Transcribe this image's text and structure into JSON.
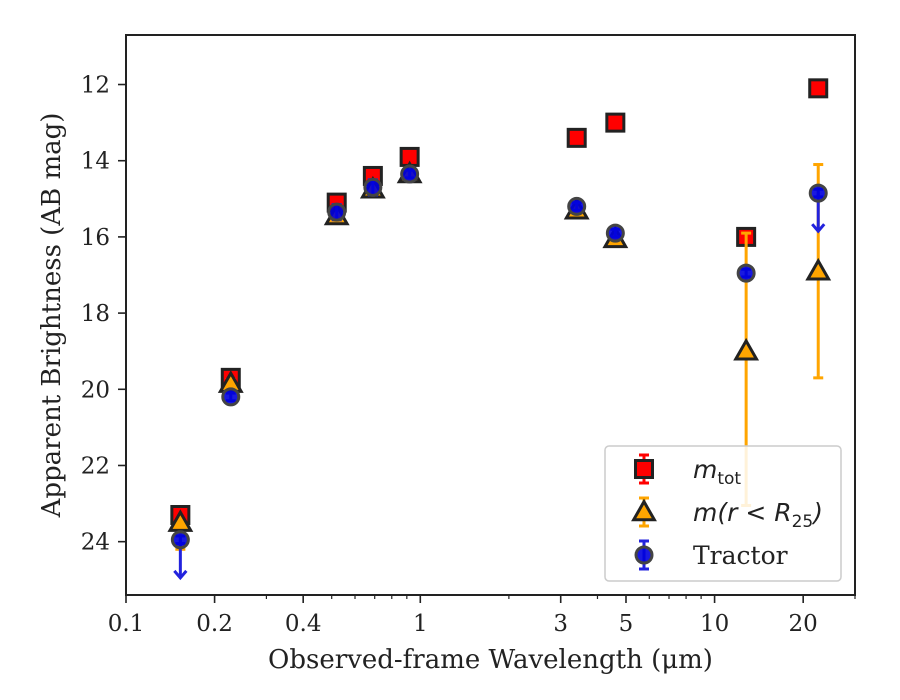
{
  "chart_data": {
    "type": "scatter",
    "title": "",
    "xlabel": "Observed-frame Wavelength (μm)",
    "ylabel": "Apparent Brightness (AB mag)",
    "xscale": "log",
    "xlim": [
      0.1,
      30
    ],
    "ylim": [
      25.4,
      10.7
    ],
    "y_inverted": true,
    "xticks": [
      0.1,
      0.2,
      0.4,
      1,
      3,
      5,
      10,
      20
    ],
    "xtick_labels": [
      "0.1",
      "0.2",
      "0.4",
      "1",
      "3",
      "5",
      "10",
      "20"
    ],
    "yticks": [
      12,
      14,
      16,
      18,
      20,
      22,
      24
    ],
    "ytick_labels": [
      "12",
      "14",
      "16",
      "18",
      "20",
      "22",
      "24"
    ],
    "grid": false,
    "legend_position": "lower-right",
    "series": [
      {
        "name": "m_tot",
        "legend_main": "m",
        "legend_sub": "tot",
        "marker": "square",
        "color": "#ff0000",
        "edge": "#222222",
        "errcolor": "#ff0000",
        "points": [
          {
            "x": 0.153,
            "y": 23.3,
            "yerr": 0.15
          },
          {
            "x": 0.227,
            "y": 19.7,
            "yerr": 0.15
          },
          {
            "x": 0.52,
            "y": 15.1,
            "yerr": 0.12
          },
          {
            "x": 0.69,
            "y": 14.4,
            "yerr": 0.12
          },
          {
            "x": 0.92,
            "y": 13.9,
            "yerr": 0.1
          },
          {
            "x": 3.4,
            "y": 13.4,
            "yerr": 0.05
          },
          {
            "x": 4.6,
            "y": 13.0,
            "yerr": 0.05
          },
          {
            "x": 12.8,
            "y": 16.0,
            "yerr": 0.1
          },
          {
            "x": 22.5,
            "y": 12.1,
            "yerr": 0.05
          }
        ]
      },
      {
        "name": "m(r < R25)",
        "legend_main": "m(r < R",
        "legend_sub": "25",
        "legend_end": ")",
        "marker": "triangle",
        "color": "#ffa500",
        "edge": "#222222",
        "errcolor": "#ffa500",
        "points": [
          {
            "x": 0.153,
            "y": 23.5,
            "yerr": 0.3,
            "upper_limit": true
          },
          {
            "x": 0.227,
            "y": 19.85,
            "yerr": 0.1
          },
          {
            "x": 0.52,
            "y": 15.45,
            "yerr": 0.1
          },
          {
            "x": 0.69,
            "y": 14.75,
            "yerr": 0.1
          },
          {
            "x": 0.92,
            "y": 14.35,
            "yerr": 0.1
          },
          {
            "x": 3.4,
            "y": 15.3,
            "yerr": 0.05
          },
          {
            "x": 4.6,
            "y": 16.05,
            "yerr": 0.05
          },
          {
            "x": 12.8,
            "y": 19.0,
            "yerr_low": 4.05,
            "yerr_high": 3.1
          },
          {
            "x": 22.5,
            "y": 16.9,
            "yerr_low": 2.8,
            "yerr_high": 2.8
          }
        ]
      },
      {
        "name": "Tractor",
        "legend_main": "Tractor",
        "marker": "circle",
        "color": "#0000dd",
        "edge": "#444444",
        "errcolor": "#2222dd",
        "points": [
          {
            "x": 0.153,
            "y": 23.95,
            "yerr": 0.1,
            "upper_limit": true,
            "arrow_to": 24.95
          },
          {
            "x": 0.227,
            "y": 20.2,
            "yerr": 0.1
          },
          {
            "x": 0.52,
            "y": 15.35,
            "yerr": 0.2
          },
          {
            "x": 0.69,
            "y": 14.7,
            "yerr": 0.2
          },
          {
            "x": 0.92,
            "y": 14.35,
            "yerr": 0.1
          },
          {
            "x": 3.4,
            "y": 15.2,
            "yerr": 0.1
          },
          {
            "x": 4.6,
            "y": 15.9,
            "yerr": 0.1
          },
          {
            "x": 12.8,
            "y": 16.95,
            "yerr": 0.1
          },
          {
            "x": 22.5,
            "y": 14.85,
            "yerr": 0.1,
            "upper_limit": true,
            "arrow_to": 15.85
          }
        ]
      }
    ]
  }
}
